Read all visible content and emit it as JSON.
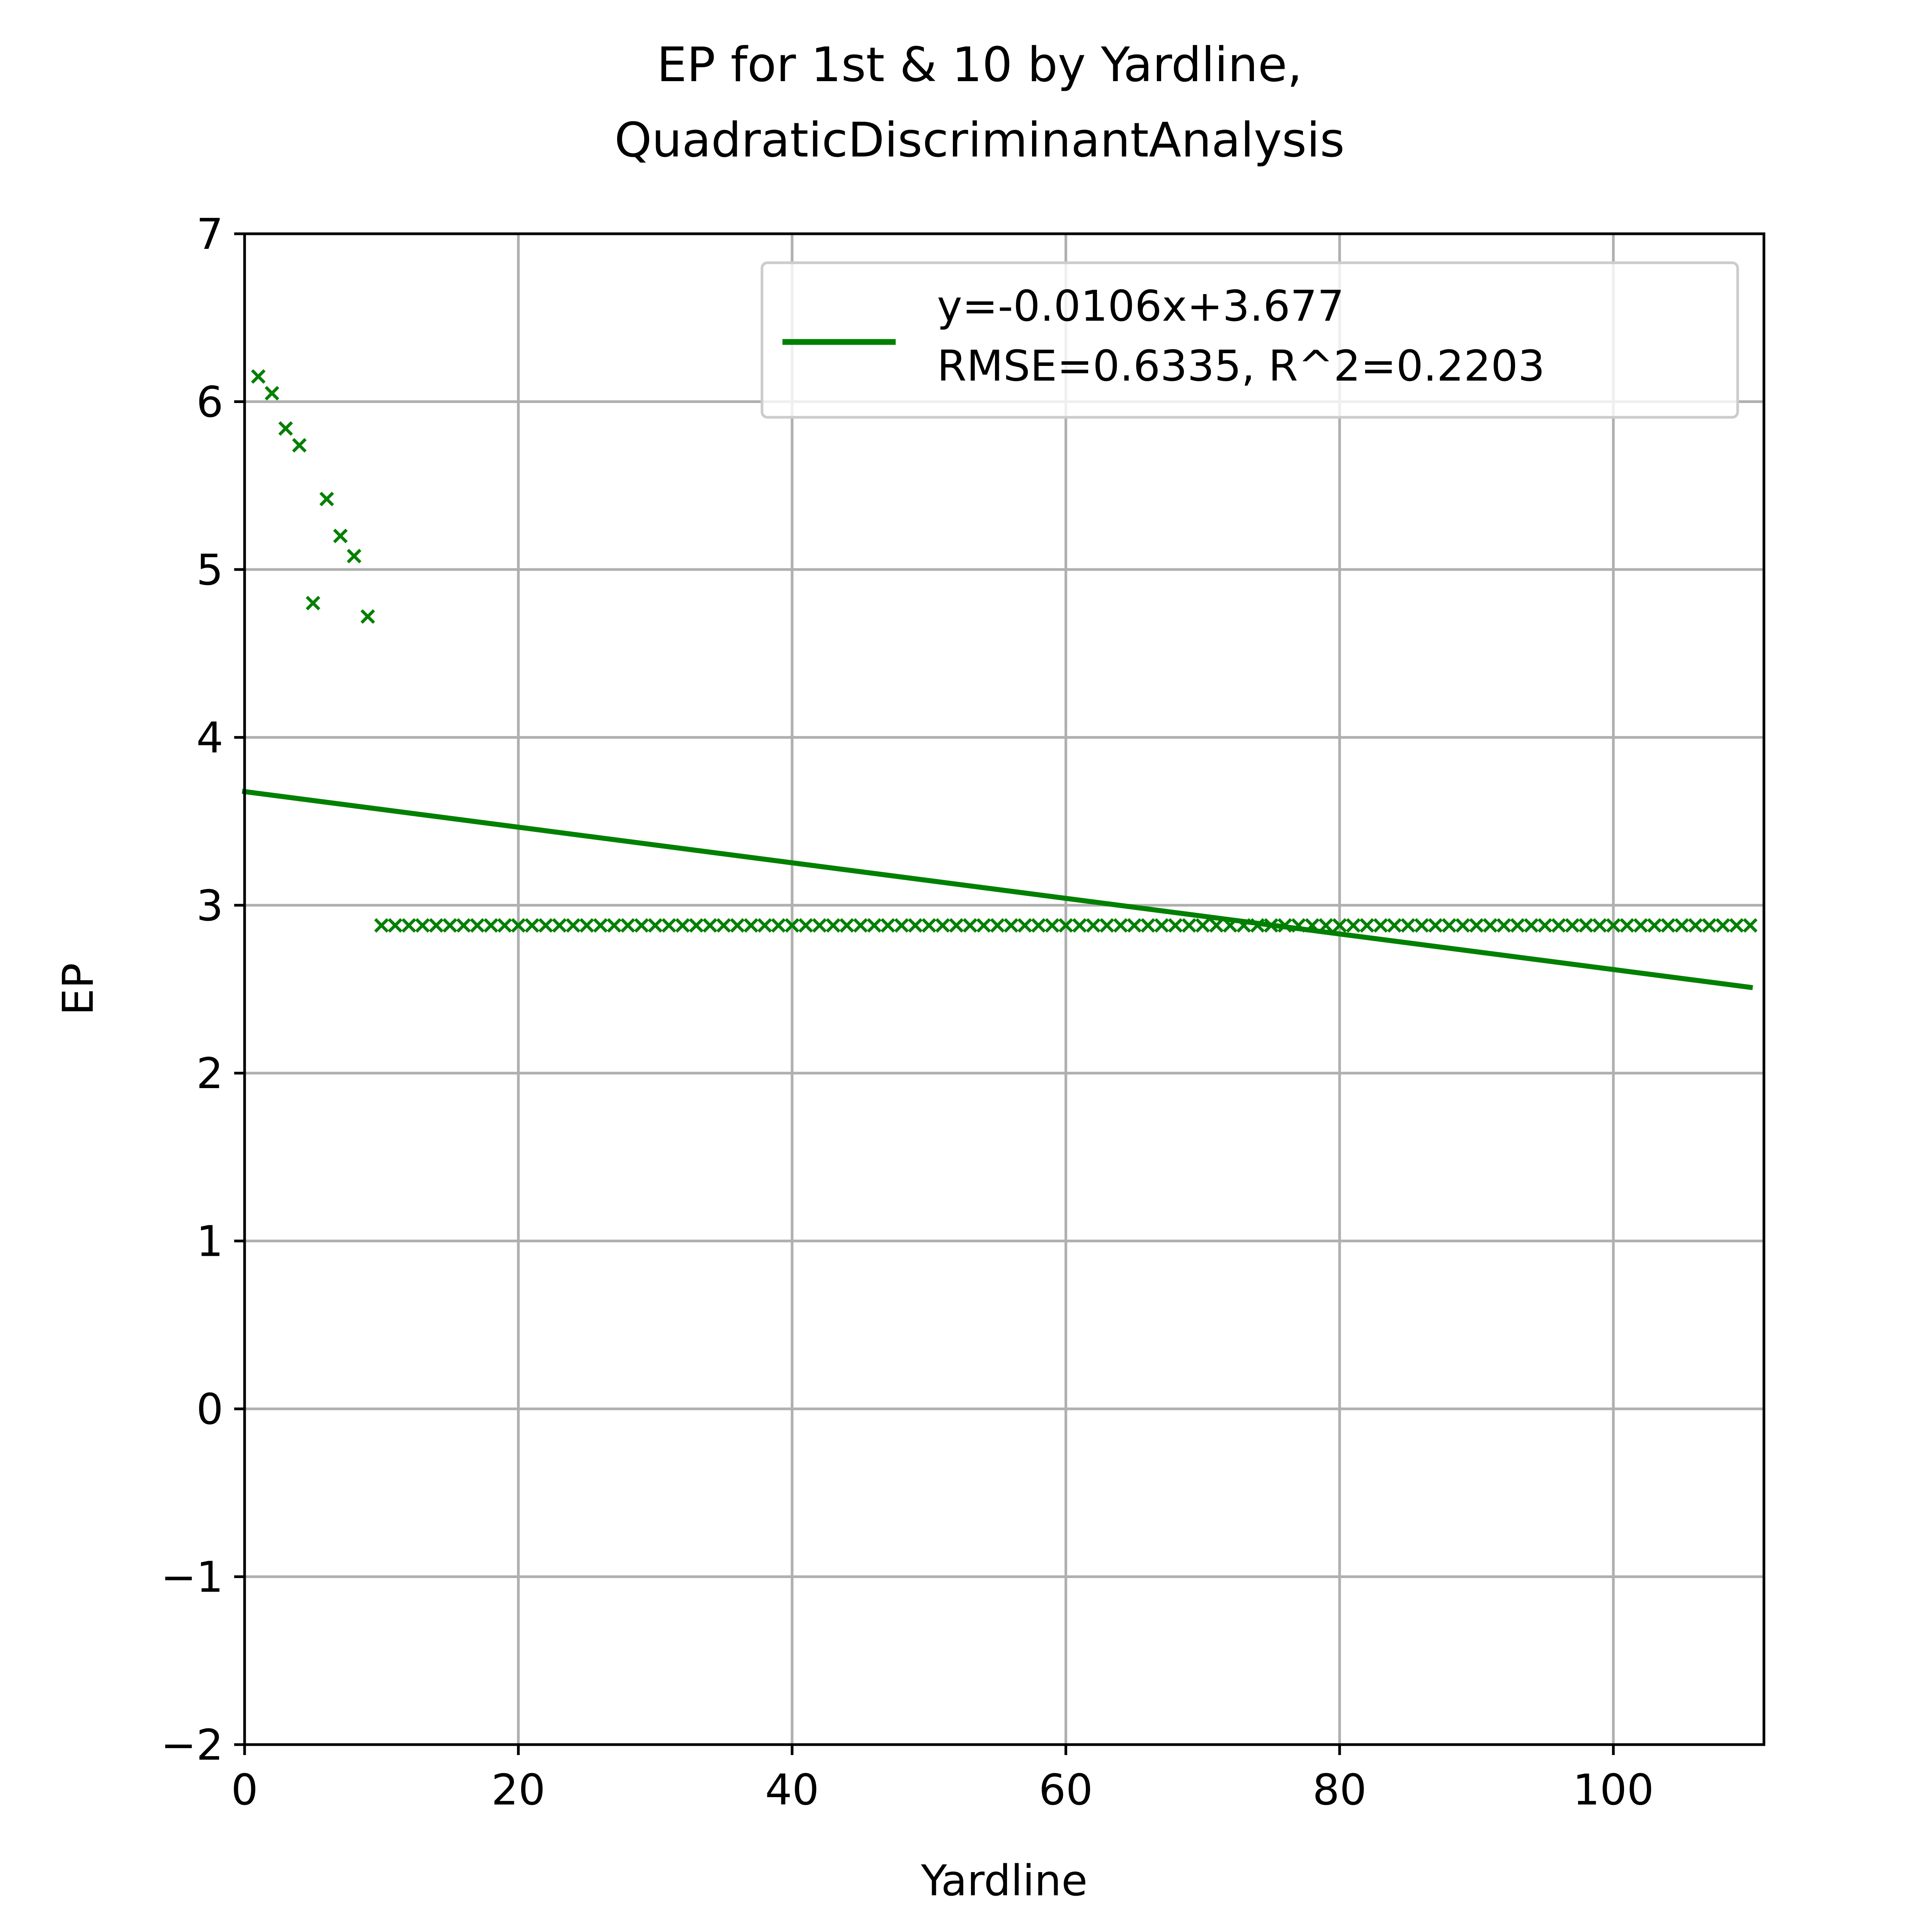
{
  "chart_data": {
    "type": "scatter",
    "title": [
      "EP for 1st & 10 by Yardline,",
      "QuadraticDiscriminantAnalysis"
    ],
    "xlabel": "Yardline",
    "ylabel": "EP",
    "xlim": [
      0,
      111
    ],
    "ylim": [
      -2,
      7
    ],
    "xticks": [
      0,
      20,
      40,
      60,
      80,
      100
    ],
    "yticks": [
      -2,
      -1,
      0,
      1,
      2,
      3,
      4,
      5,
      6,
      7
    ],
    "ytick_labels": [
      "−2",
      "−1",
      "0",
      "1",
      "2",
      "3",
      "4",
      "5",
      "6",
      "7"
    ],
    "grid": true,
    "color": "#008000",
    "marker": "x",
    "scatter": {
      "points": [
        [
          1,
          6.15
        ],
        [
          2,
          6.05
        ],
        [
          3,
          5.84
        ],
        [
          4,
          5.74
        ],
        [
          5,
          4.8
        ],
        [
          6,
          5.42
        ],
        [
          7,
          5.2
        ],
        [
          8,
          5.08
        ],
        [
          9,
          4.72
        ]
      ],
      "constant_run": {
        "x_start": 10,
        "x_end": 110,
        "y": 2.88
      }
    },
    "fit_line": {
      "slope": -0.0106,
      "intercept": 3.677,
      "x_range": [
        0,
        110
      ]
    },
    "legend": {
      "position": "top-right",
      "lines": [
        "y=-0.0106x+3.677",
        "RMSE=0.6335, R^2=0.2203"
      ]
    }
  }
}
